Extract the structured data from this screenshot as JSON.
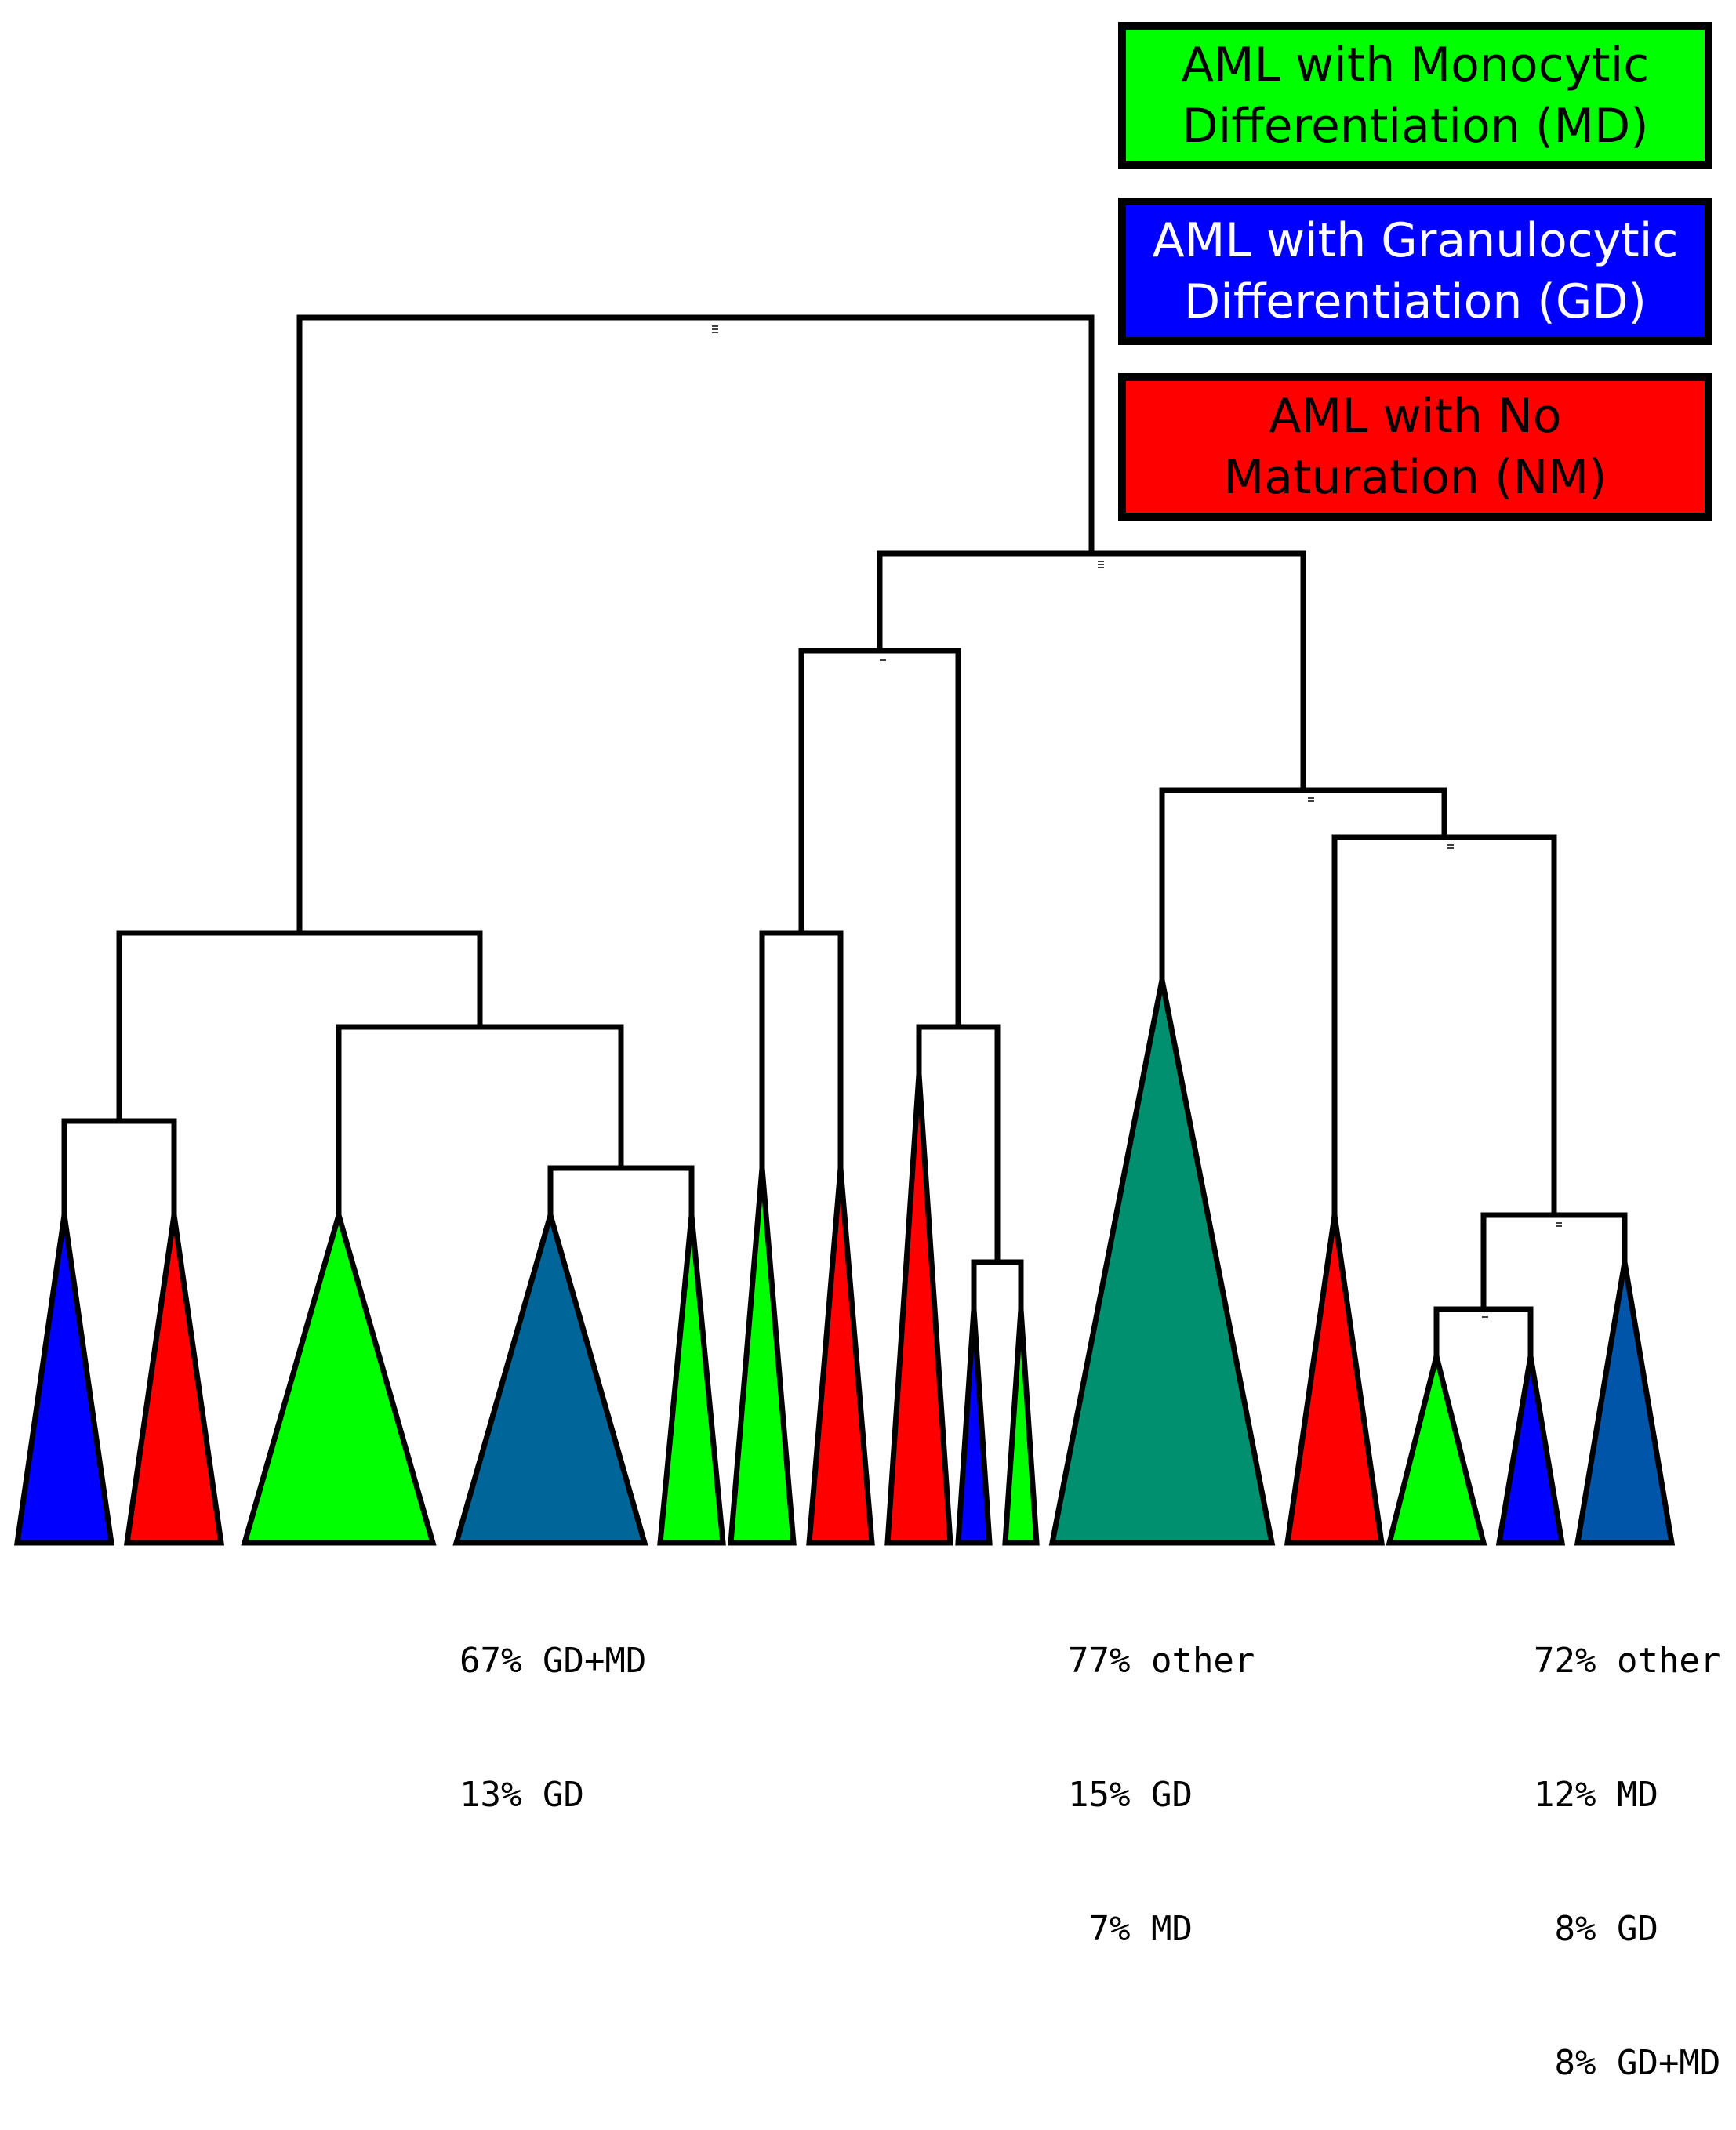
{
  "legend": [
    {
      "line1": "AML with Monocytic",
      "line2": "Differentiation (MD)",
      "fill": "#00ff00",
      "text_color": "#000000"
    },
    {
      "line1": "AML with Granulocytic",
      "line2": "Differentiation (GD)",
      "fill": "#0000ff",
      "text_color": "#ffffff"
    },
    {
      "line1": "AML with No",
      "line2": "Maturation (NM)",
      "fill": "#ff0000",
      "text_color": "#000000"
    }
  ],
  "leaf_colors": {
    "MD": "#00ff00",
    "GD": "#0000ff",
    "NM": "#ff0000",
    "mixed_gd_md": "#006699",
    "mixed_other_1": "#009070",
    "mixed_other_2": "#0055a8"
  },
  "annotations": {
    "group_a": [
      "67% GD+MD",
      "13% GD"
    ],
    "group_b": [
      "77% other",
      "15% GD",
      " 7% MD"
    ],
    "group_c": [
      "72% other",
      "12% MD",
      " 8% GD",
      " 8% GD+MD"
    ]
  }
}
